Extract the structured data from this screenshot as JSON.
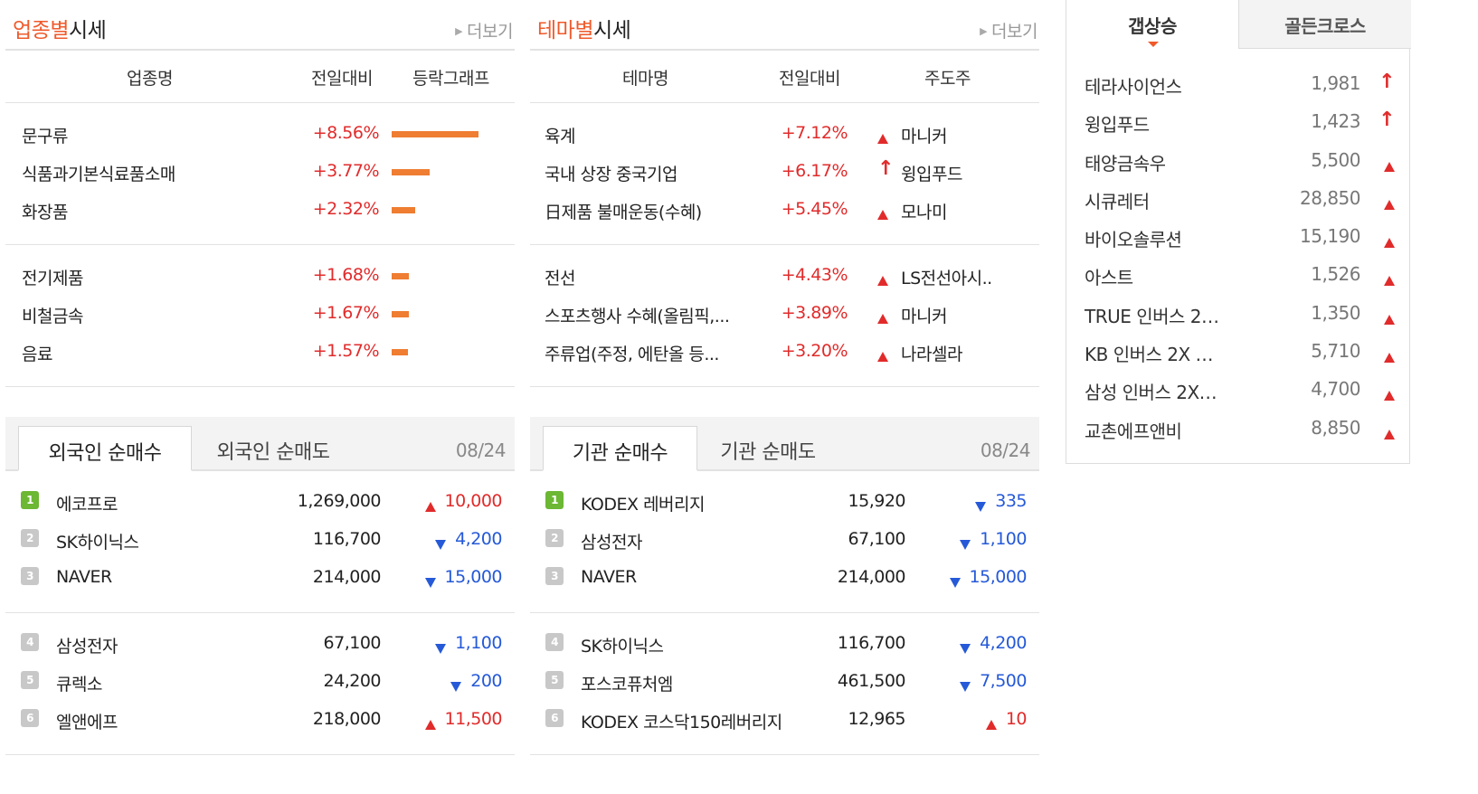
{
  "industry": {
    "title_highlight": "업종별",
    "title_rest": "시세",
    "more": "더보기",
    "headers": {
      "name": "업종명",
      "change": "전일대비",
      "graph": "등락그래프"
    },
    "groups": [
      [
        {
          "name": "문구류",
          "change": "+8.56%",
          "bar_pct": 8.56
        },
        {
          "name": "식품과기본식료품소매",
          "change": "+3.77%",
          "bar_pct": 3.77
        },
        {
          "name": "화장품",
          "change": "+2.32%",
          "bar_pct": 2.32
        }
      ],
      [
        {
          "name": "전기제품",
          "change": "+1.68%",
          "bar_pct": 1.68
        },
        {
          "name": "비철금속",
          "change": "+1.67%",
          "bar_pct": 1.67
        },
        {
          "name": "음료",
          "change": "+1.57%",
          "bar_pct": 1.57
        }
      ]
    ]
  },
  "theme": {
    "title_highlight": "테마별",
    "title_rest": "시세",
    "more": "더보기",
    "headers": {
      "name": "테마명",
      "change": "전일대비",
      "leader": "주도주"
    },
    "groups": [
      [
        {
          "name": "육계",
          "change": "+7.12%",
          "icon": "triangle-up",
          "leader": "마니커"
        },
        {
          "name": "국내 상장 중국기업",
          "change": "+6.17%",
          "icon": "arrow-up",
          "leader": "윙입푸드"
        },
        {
          "name": "日제품 불매운동(수혜)",
          "change": "+5.45%",
          "icon": "triangle-up",
          "leader": "모나미"
        }
      ],
      [
        {
          "name": "전선",
          "change": "+4.43%",
          "icon": "triangle-up",
          "leader": "LS전선아시.."
        },
        {
          "name": "스포츠행사 수혜(올림픽,...",
          "change": "+3.89%",
          "icon": "triangle-up",
          "leader": "마니커"
        },
        {
          "name": "주류업(주정, 에탄올 등...",
          "change": "+3.20%",
          "icon": "triangle-up",
          "leader": "나라셀라"
        }
      ]
    ]
  },
  "foreign": {
    "tab_buy": "외국인 순매수",
    "tab_sell": "외국인 순매도",
    "date": "08/24",
    "groups": [
      [
        {
          "rank": "1",
          "name": "에코프로",
          "price": "1,269,000",
          "dir": "up",
          "diff": "10,000"
        },
        {
          "rank": "2",
          "name": "SK하이닉스",
          "price": "116,700",
          "dir": "down",
          "diff": "4,200"
        },
        {
          "rank": "3",
          "name": "NAVER",
          "price": "214,000",
          "dir": "down",
          "diff": "15,000"
        }
      ],
      [
        {
          "rank": "4",
          "name": "삼성전자",
          "price": "67,100",
          "dir": "down",
          "diff": "1,100"
        },
        {
          "rank": "5",
          "name": "큐렉소",
          "price": "24,200",
          "dir": "down",
          "diff": "200"
        },
        {
          "rank": "6",
          "name": "엘앤에프",
          "price": "218,000",
          "dir": "up",
          "diff": "11,500"
        }
      ]
    ]
  },
  "institution": {
    "tab_buy": "기관 순매수",
    "tab_sell": "기관 순매도",
    "date": "08/24",
    "groups": [
      [
        {
          "rank": "1",
          "name": "KODEX 레버리지",
          "price": "15,920",
          "dir": "down",
          "diff": "335"
        },
        {
          "rank": "2",
          "name": "삼성전자",
          "price": "67,100",
          "dir": "down",
          "diff": "1,100"
        },
        {
          "rank": "3",
          "name": "NAVER",
          "price": "214,000",
          "dir": "down",
          "diff": "15,000"
        }
      ],
      [
        {
          "rank": "4",
          "name": "SK하이닉스",
          "price": "116,700",
          "dir": "down",
          "diff": "4,200"
        },
        {
          "rank": "5",
          "name": "포스코퓨처엠",
          "price": "461,500",
          "dir": "down",
          "diff": "7,500"
        },
        {
          "rank": "6",
          "name": "KODEX 코스닥150레버리지",
          "price": "12,965",
          "dir": "up",
          "diff": "10"
        }
      ]
    ]
  },
  "gap": {
    "tab_gap": "갭상승",
    "tab_golden": "골든크로스",
    "items": [
      {
        "name": "테라사이언스",
        "price": "1,981",
        "icon": "arrow-up"
      },
      {
        "name": "윙입푸드",
        "price": "1,423",
        "icon": "arrow-up"
      },
      {
        "name": "태양금속우",
        "price": "5,500",
        "icon": "triangle-up"
      },
      {
        "name": "시큐레터",
        "price": "28,850",
        "icon": "triangle-up"
      },
      {
        "name": "바이오솔루션",
        "price": "15,190",
        "icon": "triangle-up"
      },
      {
        "name": "아스트",
        "price": "1,526",
        "icon": "triangle-up"
      },
      {
        "name": "TRUE 인버스 2…",
        "price": "1,350",
        "icon": "triangle-up"
      },
      {
        "name": "KB 인버스 2X …",
        "price": "5,710",
        "icon": "triangle-up"
      },
      {
        "name": "삼성 인버스 2X…",
        "price": "4,700",
        "icon": "triangle-up"
      },
      {
        "name": "교촌에프앤비",
        "price": "8,850",
        "icon": "triangle-up"
      }
    ]
  },
  "colors": {
    "accent": "#ef5a2b",
    "up": "#e12b2b",
    "down": "#2559d8",
    "bar": "#ef7d32",
    "rank_first": "#6cb733",
    "rank_other": "#c8c8c8"
  }
}
